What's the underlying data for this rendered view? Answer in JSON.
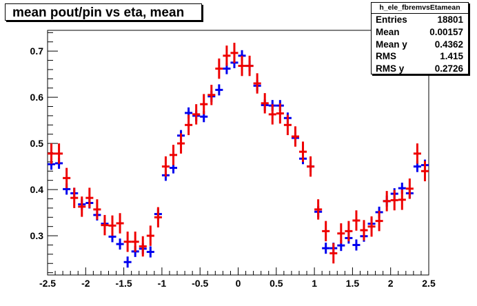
{
  "title": "mean pout/pin vs eta, mean",
  "stats": {
    "name": "h_ele_fbremvsEtamean",
    "rows": [
      {
        "label": "Entries",
        "value": "18801"
      },
      {
        "label": "Mean",
        "value": "0.00157"
      },
      {
        "label": "Mean y",
        "value": "0.4362"
      },
      {
        "label": "RMS",
        "value": "1.415"
      },
      {
        "label": "RMS y",
        "value": "0.2726"
      }
    ]
  },
  "colors": {
    "blue": "#0000ee",
    "red": "#ee0000",
    "axis": "#000000"
  },
  "chart_data": {
    "type": "scatter",
    "title": "mean pout/pin vs eta, mean",
    "xlim": [
      -2.5,
      2.5
    ],
    "ylim": [
      0.215,
      0.745
    ],
    "xticks": [
      -2.5,
      -2,
      -1.5,
      -1,
      -0.5,
      0,
      0.5,
      1,
      1.5,
      2,
      2.5
    ],
    "xtick_labels": [
      "-2.5",
      "-2",
      "-1.5",
      "-1",
      "-0.5",
      "0",
      "0.5",
      "1",
      "1.5",
      "2",
      "2.5"
    ],
    "yticks": [
      0.3,
      0.4,
      0.5,
      0.6,
      0.7
    ],
    "ytick_labels": [
      "0.3",
      "0.4",
      "0.5",
      "0.6",
      "0.7"
    ],
    "grid": false,
    "series": [
      {
        "color": "blue",
        "x": [
          -2.45,
          -2.35,
          -2.25,
          -2.15,
          -2.05,
          -1.95,
          -1.85,
          -1.75,
          -1.65,
          -1.55,
          -1.45,
          -1.35,
          -1.25,
          -1.15,
          -1.05,
          -0.95,
          -0.85,
          -0.75,
          -0.65,
          -0.55,
          -0.45,
          -0.35,
          -0.25,
          -0.15,
          -0.05,
          0.05,
          0.15,
          0.25,
          0.35,
          0.45,
          0.55,
          0.65,
          0.75,
          0.85,
          0.95,
          1.05,
          1.15,
          1.25,
          1.35,
          1.45,
          1.55,
          1.65,
          1.75,
          1.85,
          1.95,
          2.05,
          2.15,
          2.25,
          2.35,
          2.45
        ],
        "y": [
          0.455,
          0.457,
          0.401,
          0.392,
          0.368,
          0.371,
          0.345,
          0.326,
          0.298,
          0.282,
          0.243,
          0.266,
          0.272,
          0.265,
          0.347,
          0.431,
          0.447,
          0.517,
          0.566,
          0.56,
          0.558,
          0.602,
          0.616,
          0.662,
          0.675,
          0.69,
          0.668,
          0.625,
          0.583,
          0.582,
          0.582,
          0.555,
          0.512,
          0.467,
          0.45,
          0.352,
          0.273,
          0.273,
          0.279,
          0.295,
          0.28,
          0.299,
          0.326,
          0.351,
          0.375,
          0.391,
          0.403,
          0.392,
          0.45,
          0.453
        ],
        "yerr": 0.012
      },
      {
        "color": "red",
        "x": [
          -2.45,
          -2.35,
          -2.25,
          -2.15,
          -2.05,
          -1.95,
          -1.85,
          -1.75,
          -1.65,
          -1.55,
          -1.45,
          -1.35,
          -1.25,
          -1.15,
          -1.05,
          -0.95,
          -0.85,
          -0.75,
          -0.65,
          -0.55,
          -0.45,
          -0.35,
          -0.25,
          -0.15,
          -0.05,
          0.05,
          0.15,
          0.25,
          0.35,
          0.45,
          0.55,
          0.65,
          0.75,
          0.85,
          0.95,
          1.05,
          1.15,
          1.25,
          1.35,
          1.45,
          1.55,
          1.65,
          1.75,
          1.85,
          1.95,
          2.05,
          2.15,
          2.25,
          2.35,
          2.45
        ],
        "y": [
          0.478,
          0.478,
          0.425,
          0.382,
          0.363,
          0.382,
          0.357,
          0.323,
          0.322,
          0.327,
          0.287,
          0.287,
          0.277,
          0.3,
          0.34,
          0.45,
          0.475,
          0.5,
          0.54,
          0.563,
          0.585,
          0.605,
          0.662,
          0.69,
          0.696,
          0.668,
          0.668,
          0.63,
          0.587,
          0.563,
          0.565,
          0.54,
          0.515,
          0.482,
          0.45,
          0.357,
          0.31,
          0.262,
          0.305,
          0.31,
          0.333,
          0.312,
          0.32,
          0.332,
          0.375,
          0.377,
          0.378,
          0.402,
          0.478,
          0.44
        ],
        "yerr": 0.022
      }
    ]
  }
}
